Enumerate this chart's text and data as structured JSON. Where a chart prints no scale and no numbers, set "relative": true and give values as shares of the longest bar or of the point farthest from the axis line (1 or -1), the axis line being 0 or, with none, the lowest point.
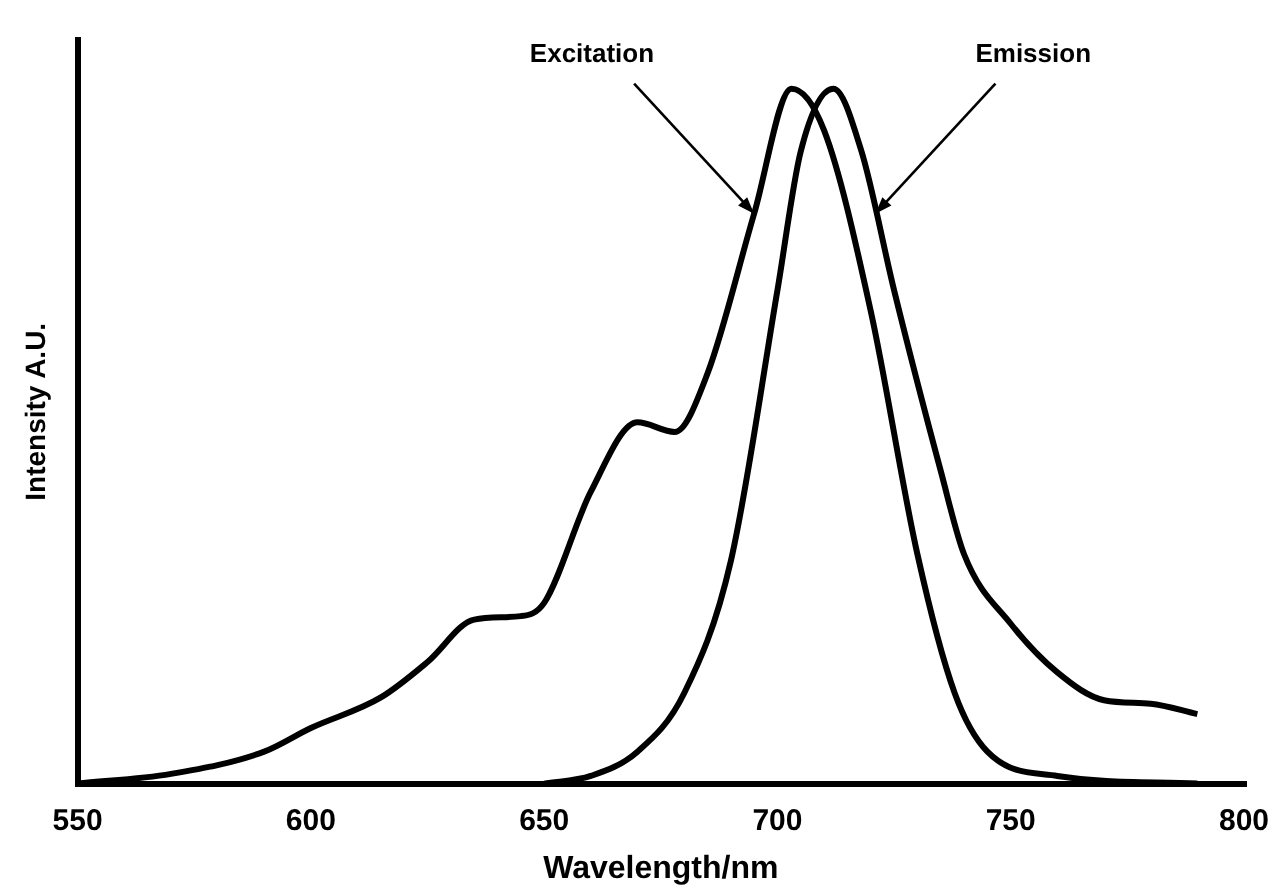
{
  "chart_data": {
    "type": "line",
    "xlabel": "Wavelength/nm",
    "ylabel": "Intensity A.U.",
    "relative": true,
    "xlim": [
      550,
      800
    ],
    "xticks": [
      550,
      600,
      650,
      700,
      750,
      800
    ],
    "grid": false,
    "legend": false,
    "marker": "none",
    "line_style": "solid",
    "series": [
      {
        "color": "#000000",
        "x": [
          550,
          570,
          590,
          600,
          615,
          625,
          635,
          645,
          650,
          660,
          670,
          678,
          685,
          695,
          703,
          710,
          720,
          730,
          738,
          745,
          760,
          790
        ],
        "values": [
          0,
          0.014,
          0.046,
          0.08,
          0.124,
          0.175,
          0.236,
          0.241,
          0.26,
          0.42,
          0.52,
          0.506,
          0.59,
          0.82,
          1.0,
          0.94,
          0.68,
          0.33,
          0.13,
          0.046,
          0.011,
          0
        ]
      },
      {
        "color": "#000000",
        "x": [
          650,
          660,
          670,
          680,
          690,
          700,
          705,
          712,
          718,
          725,
          735,
          740,
          750,
          760,
          770,
          780,
          790
        ],
        "values": [
          0,
          0.011,
          0.046,
          0.13,
          0.32,
          0.71,
          0.91,
          1.0,
          0.91,
          0.71,
          0.45,
          0.33,
          0.23,
          0.16,
          0.12,
          0.115,
          0.1
        ]
      }
    ],
    "annotations": [
      {
        "text": "Excitation",
        "x": 695,
        "y": 0.82
      },
      {
        "text": "Emission",
        "x": 721,
        "y": 0.82
      }
    ]
  }
}
